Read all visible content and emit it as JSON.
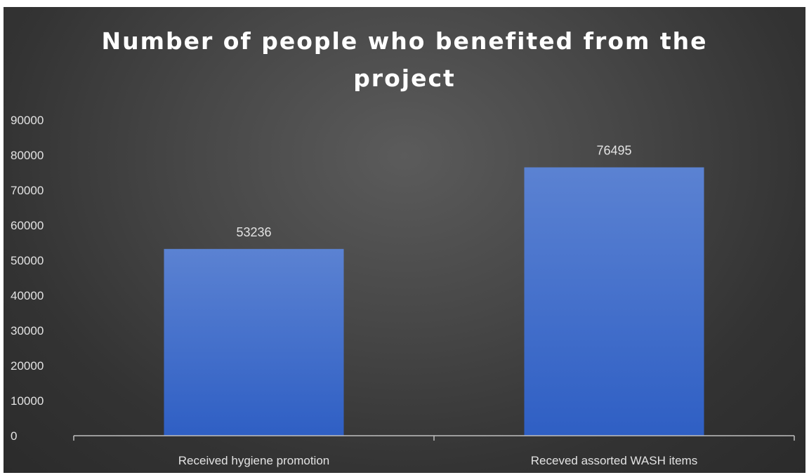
{
  "chart_data": {
    "type": "bar",
    "title_lines": [
      "Number of people who benefited from the",
      "project"
    ],
    "categories": [
      "Received hygiene promotion",
      "Receved assorted WASH items"
    ],
    "values": [
      53236,
      76495
    ],
    "data_labels": [
      "53236",
      "76495"
    ],
    "y_ticks": [
      "0",
      "10000",
      "20000",
      "30000",
      "40000",
      "50000",
      "60000",
      "70000",
      "80000",
      "90000"
    ],
    "ylim": [
      0,
      90000
    ],
    "xlabel": "",
    "ylabel": "",
    "grid": false,
    "legend": "none",
    "colors": {
      "bar_top": "#5b82d2",
      "bar_bottom": "#2f5fc4",
      "axis": "#bfbfbf",
      "text": "#e3e3e3",
      "title": "#ffffff"
    }
  }
}
